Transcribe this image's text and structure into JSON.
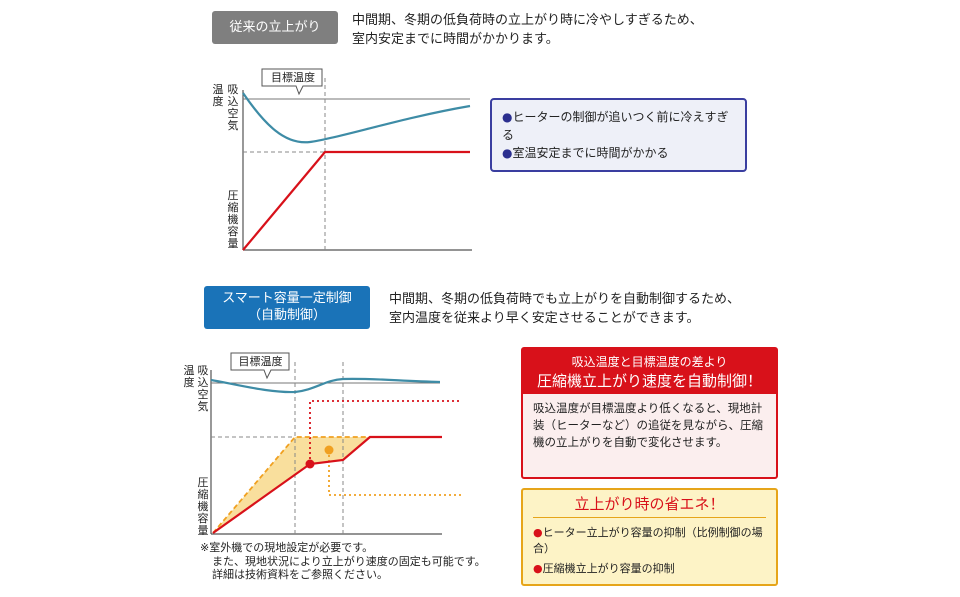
{
  "conventional": {
    "tag": "従来の立上がり",
    "desc_lines": [
      "中間期、冬期の低負荷時の立上がり時に冷やしすぎるため、",
      "室内安定までに時間がかかります。"
    ],
    "target_label": "目標温度",
    "axis_top_label_a": "吸込空気",
    "axis_top_label_b": "温度",
    "axis_bottom_label": "圧縮機容量",
    "note_items": [
      "ヒーターの制御が追いつく前に冷えすぎる",
      "室温安定までに時間がかかる"
    ]
  },
  "smart": {
    "tag_line1": "スマート容量一定制御",
    "tag_line2": "（自動制御）",
    "desc_lines": [
      "中間期、冬期の低負荷時でも立上がりを自動制御するため、",
      "室内温度を従来より早く安定させることができます。"
    ],
    "target_label": "目標温度",
    "axis_top_label_a": "吸込空気",
    "axis_top_label_b": "温度",
    "axis_bottom_label": "圧縮機容量",
    "footnotes": [
      "※室外機での現地設定が必要です。",
      "また、現地状況により立上がり速度の固定も可能です。",
      "詳細は技術資料をご参照ください。"
    ]
  },
  "red_panel": {
    "head_line1": "吸込温度と目標温度の差より",
    "head_line2": "圧縮機立上がり速度を自動制御！",
    "body": "吸込温度が目標温度より低くなると、現地計装（ヒーターなど）の追従を見ながら、圧縮機の立上がりを自動で変化させます。"
  },
  "yellow_panel": {
    "title": "立上がり時の省エネ！",
    "items": [
      "ヒーター立上がり容量の抑制（比例制御の場合）",
      "圧縮機立上がり容量の抑制"
    ]
  },
  "colors": {
    "red": "#d8111a",
    "blue_tag": "#1a73b8",
    "teal_curve": "#3e8ca6",
    "orange": "#f0a020",
    "note_border": "#3a3ea0"
  }
}
